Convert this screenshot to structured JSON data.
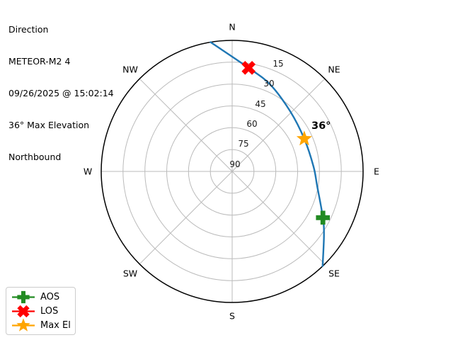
{
  "figure": {
    "header": {
      "lines": [
        "Direction",
        "METEOR-M2 4",
        "09/26/2025 @ 15:02:14",
        "36° Max Elevation",
        "Northbound"
      ]
    }
  },
  "chart_data": {
    "type": "polar_skyplot",
    "title": "Direction",
    "satellite": "METEOR-M2 4",
    "timestamp": "09/26/2025 @ 15:02:14",
    "max_elevation_deg": 36,
    "pass_direction": "Northbound",
    "compass_labels": [
      "N",
      "NE",
      "E",
      "SE",
      "S",
      "SW",
      "W",
      "NW"
    ],
    "elevation_ticks": [
      15,
      30,
      45,
      60,
      75,
      90
    ],
    "elevation_range": [
      0,
      90
    ],
    "grid": true,
    "track_az_el": [
      [
        350.5,
        0
      ],
      [
        9,
        18
      ],
      [
        24,
        25
      ],
      [
        44,
        32.6
      ],
      [
        65.7,
        35.6
      ],
      [
        86.5,
        34
      ],
      [
        99.5,
        30.8
      ],
      [
        117,
        20
      ],
      [
        125,
        13
      ],
      [
        136.3,
        0
      ]
    ],
    "markers": [
      {
        "id": "aos",
        "label": "AOS",
        "shape": "plus",
        "color": "#228B22",
        "az": 117,
        "el": 20
      },
      {
        "id": "los",
        "label": "LOS",
        "shape": "x",
        "color": "#FF0000",
        "az": 9,
        "el": 18
      },
      {
        "id": "max_el",
        "label": "Max El",
        "shape": "star",
        "color": "#FFA500",
        "az": 65.7,
        "el": 35.6
      }
    ],
    "annotation": {
      "text": "36°",
      "az": 65.7,
      "el": 35.6
    },
    "colors": {
      "track": "#1F77B4",
      "grid": "#BBBBBB",
      "outline": "#000000",
      "text": "#000000"
    }
  },
  "legend": {
    "items": [
      {
        "label": "AOS",
        "shape": "plus",
        "color": "#228B22"
      },
      {
        "label": "LOS",
        "shape": "x",
        "color": "#FF0000"
      },
      {
        "label": "Max El",
        "shape": "star",
        "color": "#FFA500"
      }
    ],
    "position": "lower left"
  }
}
